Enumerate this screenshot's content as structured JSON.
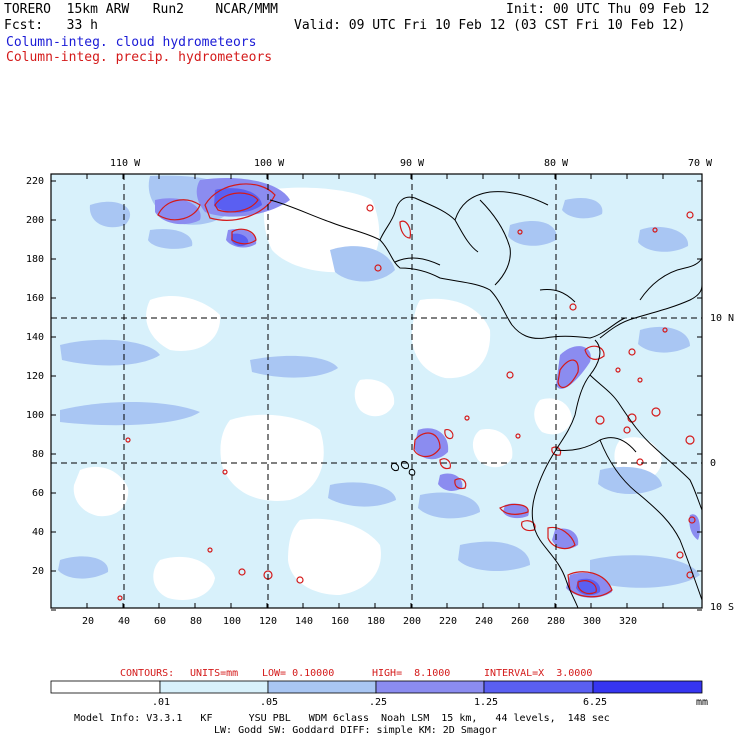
{
  "header": {
    "left_line1": "TORERO  15km ARW   Run2    NCAR/MMM",
    "left_line2": "Fcst:   33 h",
    "right_line1": "Init: 00 UTC Thu 09 Feb 12",
    "right_line2": "Valid: 09 UTC Fri 10 Feb 12 (03 CST Fri 10 Feb 12)",
    "field1": "Column-integ. cloud hydrometeors",
    "field2": "Column-integ. precip. hydrometeors"
  },
  "colors": {
    "cloud_blue": "#1a1ad6",
    "precip_red": "#d41a1a",
    "shade1": "#d8f1fb",
    "shade2": "#a9c6f3",
    "shade3": "#8b8cf0",
    "shade4": "#5a5ff2",
    "shade5": "#3635f0",
    "shade6": "#1e14ea"
  },
  "map": {
    "top_lon_labels": [
      "110 W",
      "100 W",
      "90 W",
      "80 W",
      "70 W"
    ],
    "right_lat_labels": [
      "10 N",
      "0",
      "10 S"
    ],
    "y_ticks": [
      "220",
      "200",
      "180",
      "160",
      "140",
      "120",
      "100",
      "80",
      "60",
      "40",
      "20"
    ],
    "x_ticks": [
      "20",
      "40",
      "60",
      "80",
      "100",
      "120",
      "140",
      "160",
      "180",
      "200",
      "220",
      "240",
      "260",
      "280",
      "300",
      "320"
    ]
  },
  "contours": {
    "label": "CONTOURS:",
    "units": "UNITS=mm",
    "low": "LOW= 0.10000",
    "high": "HIGH=  8.1000",
    "interval": "INTERVAL=X  3.0000"
  },
  "colorbar": {
    "labels": [
      ".01",
      ".05",
      ".25",
      "1.25",
      "6.25"
    ],
    "unit": "mm"
  },
  "footer": {
    "line1": "Model Info: V3.3.1   KF      YSU PBL   WDM 6class  Noah LSM  15 km,   44 levels,  148 sec",
    "line2": "LW: Godd SW: Goddard DIFF: simple KM: 2D Smagor"
  }
}
